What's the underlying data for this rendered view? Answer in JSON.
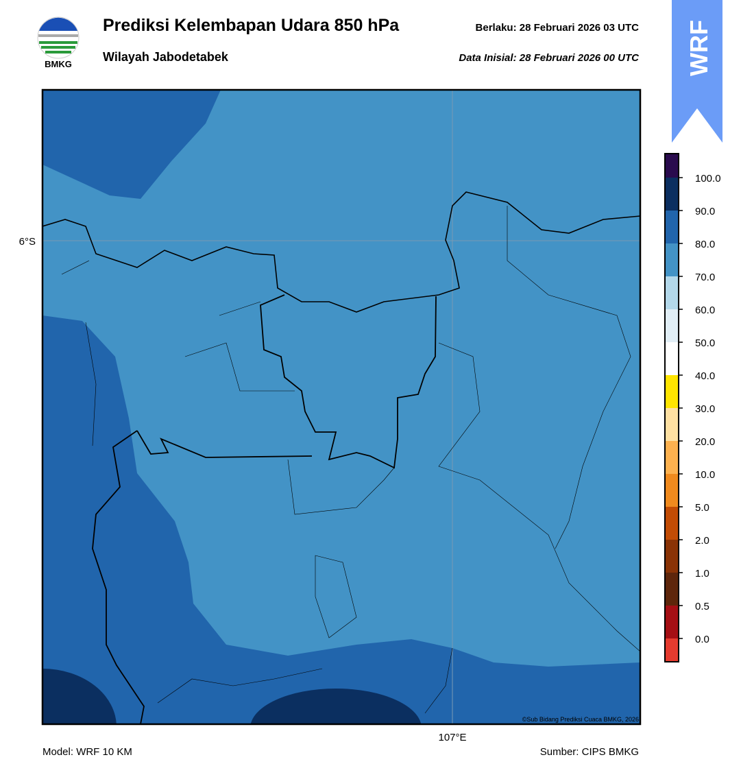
{
  "header": {
    "title": "Prediksi Kelembapan Udara 850 hPa",
    "subtitle": "Wilayah Jabodetabek",
    "valid": "Berlaku:  28 Februari 2026 03 UTC",
    "init": "Data Inisial:  28 Februari 2026 00 UTC",
    "logo": "BMKG",
    "badge": "WRF"
  },
  "map": {
    "lat_label": "6°S",
    "lon_label": "107°E",
    "copyright": "©Sub Bidang Prediksi Cuaca BMKG, 2026"
  },
  "colorbar": {
    "ticks": [
      {
        "value": 0,
        "label": "0.0"
      },
      {
        "value": 0.5,
        "label": "0.5"
      },
      {
        "value": 1,
        "label": "1.0"
      },
      {
        "value": 2,
        "label": "2.0"
      },
      {
        "value": 5,
        "label": "5.0"
      },
      {
        "value": 10,
        "label": "10.0"
      },
      {
        "value": 20,
        "label": "20.0"
      },
      {
        "value": 30,
        "label": "30.0"
      },
      {
        "value": 40,
        "label": "40.0"
      },
      {
        "value": 50,
        "label": "50.0"
      },
      {
        "value": 60,
        "label": "60.0"
      },
      {
        "value": 70,
        "label": "70.0"
      },
      {
        "value": 80,
        "label": "80.0"
      },
      {
        "value": 90,
        "label": "90.0"
      },
      {
        "value": 100,
        "label": "100.0"
      }
    ],
    "colors": [
      "#e53b2f",
      "#a50f15",
      "#5e260b",
      "#8a3306",
      "#c24c05",
      "#f08a1e",
      "#fdb14f",
      "#fee0a2",
      "#ffe500",
      "#ffffff",
      "#e1eef6",
      "#b3d8ea",
      "#4393c6",
      "#2165ac",
      "#0b2f60",
      "#2a0b4e"
    ]
  },
  "footer": {
    "model": "Model: WRF 10 KM",
    "source": "Sumber: CIPS BMKG"
  }
}
